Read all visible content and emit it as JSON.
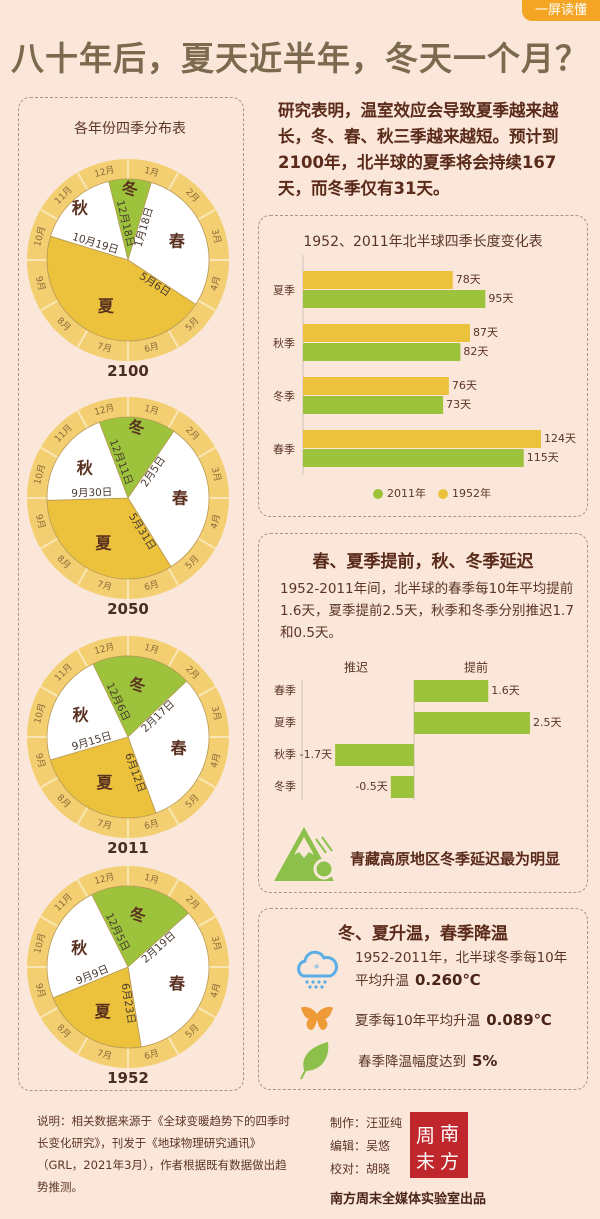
{
  "badge": "一屏读懂",
  "title": "八十年后，夏天近半年，冬天一个月？",
  "intro": "研究表明，温室效应会导致夏季越来越长，冬、春、秋三季越来越短。预计到2100年，北半球的夏季将会持续167天，而冬季仅有31天。",
  "colors": {
    "winter": "#9dc33c",
    "spring": "#ffffff",
    "summer": "#ecc23c",
    "autumn": "#ffffff",
    "ring": "#f3cf72",
    "bar_1952": "#ecc23c",
    "bar_2011": "#9dc33c",
    "accent": "#f5a524"
  },
  "chart_data": [
    {
      "type": "pie",
      "title": "各年份四季分布表",
      "months": [
        "1月",
        "2月",
        "3月",
        "4月",
        "5月",
        "6月",
        "7月",
        "8月",
        "9月",
        "10月",
        "11月",
        "12月"
      ],
      "pies": [
        {
          "year": "2100",
          "seasons": [
            {
              "name": "冬",
              "start": "12月18日",
              "key": "winter"
            },
            {
              "name": "春",
              "start": "1月18日",
              "key": "spring"
            },
            {
              "name": "夏",
              "start": "5月6日",
              "key": "summer"
            },
            {
              "name": "秋",
              "start": "10月19日",
              "key": "autumn"
            }
          ]
        },
        {
          "year": "2050",
          "seasons": [
            {
              "name": "冬",
              "start": "12月11日",
              "key": "winter"
            },
            {
              "name": "春",
              "start": "2月5日",
              "key": "spring"
            },
            {
              "name": "夏",
              "start": "5月31日",
              "key": "summer"
            },
            {
              "name": "秋",
              "start": "9月30日",
              "key": "autumn"
            }
          ]
        },
        {
          "year": "2011",
          "seasons": [
            {
              "name": "冬",
              "start": "12月6日",
              "key": "winter"
            },
            {
              "name": "春",
              "start": "2月17日",
              "key": "spring"
            },
            {
              "name": "夏",
              "start": "6月12日",
              "key": "summer"
            },
            {
              "name": "秋",
              "start": "9月15日",
              "key": "autumn"
            }
          ]
        },
        {
          "year": "1952",
          "seasons": [
            {
              "name": "冬",
              "start": "12月5日",
              "key": "winter"
            },
            {
              "name": "春",
              "start": "2月19日",
              "key": "spring"
            },
            {
              "name": "夏",
              "start": "6月23日",
              "key": "summer"
            },
            {
              "name": "秋",
              "start": "9月9日",
              "key": "autumn"
            }
          ]
        }
      ]
    },
    {
      "type": "bar",
      "orientation": "horizontal",
      "title": "1952、2011年北半球四季长度变化表",
      "categories": [
        "夏季",
        "秋季",
        "冬季",
        "春季"
      ],
      "unit": "天",
      "series": [
        {
          "name": "1952年",
          "values": [
            78,
            87,
            76,
            124
          ],
          "color_key": "bar_1952"
        },
        {
          "name": "2011年",
          "values": [
            95,
            82,
            73,
            115
          ],
          "color_key": "bar_2011"
        }
      ],
      "legend": [
        "2011年",
        "1952年"
      ],
      "legend_position": "bottom",
      "xlim": [
        0,
        124
      ],
      "grid": false
    },
    {
      "type": "bar",
      "orientation": "horizontal",
      "title": "春、夏季提前，秋、冬季延迟",
      "description": "1952-2011年间，北半球的春季每10年平均提前1.6天，夏季提前2.5天，秋季和冬季分别推迟1.7和0.5天。",
      "left_header": "推迟",
      "right_header": "提前",
      "categories": [
        "春季",
        "夏季",
        "秋季",
        "冬季"
      ],
      "values": [
        1.6,
        2.5,
        -1.7,
        -0.5
      ],
      "labels": [
        "1.6天",
        "2.5天",
        "-1.7天",
        "-0.5天"
      ],
      "xlim": [
        -2.4,
        2.5
      ],
      "grid": false
    }
  ],
  "shift_note": {
    "icon": "mountain-icon",
    "text": "青藏高原地区冬季延迟最为明显"
  },
  "temperature": {
    "title": "冬、夏升温，春季降温",
    "rows": [
      {
        "icon": "snow-cloud-icon",
        "text_line1": "1952-2011年，北半球冬季每10年",
        "text_line2": "平均升温",
        "value": "0.260℃"
      },
      {
        "icon": "butterfly-icon",
        "text_line1": "夏季每10年平均升温",
        "value": "0.089℃"
      },
      {
        "icon": "leaf-icon",
        "text_line1": "春季降温幅度达到",
        "value": "5%"
      }
    ]
  },
  "footer": {
    "note": "说明：相关数据来源于《全球变暖趋势下的四季时长变化研究》，刊发于《地球物理研究通讯》（GRL，2021年3月），作者根据既有数据做出趋势推测。",
    "credits": [
      "制作：汪亚纯",
      "编辑：吴悠",
      "校对：胡晓"
    ],
    "logo_text": [
      "周",
      "南",
      "末",
      "方"
    ],
    "publisher": "南方周末全媒体实验室出品"
  }
}
